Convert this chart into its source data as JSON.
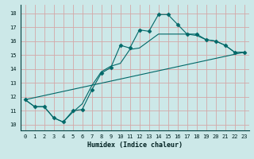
{
  "xlabel": "Humidex (Indice chaleur)",
  "xlim": [
    -0.5,
    23.5
  ],
  "ylim": [
    9.6,
    18.6
  ],
  "xticks": [
    0,
    1,
    2,
    3,
    4,
    5,
    6,
    7,
    8,
    9,
    10,
    11,
    12,
    13,
    14,
    15,
    16,
    17,
    18,
    19,
    20,
    21,
    22,
    23
  ],
  "yticks": [
    10,
    11,
    12,
    13,
    14,
    15,
    16,
    17,
    18
  ],
  "background_color": "#cce8e8",
  "grid_color": "#d4a8a8",
  "line_color": "#006868",
  "line1_x": [
    0,
    1,
    2,
    3,
    4,
    5,
    6,
    7,
    8,
    9,
    10,
    11,
    12,
    13,
    14,
    15,
    16,
    17,
    18,
    19,
    20,
    21,
    22,
    23
  ],
  "line1_y": [
    11.8,
    11.3,
    11.3,
    10.5,
    10.2,
    11.0,
    11.1,
    12.5,
    13.7,
    14.1,
    15.7,
    15.5,
    16.8,
    16.7,
    17.9,
    17.9,
    17.2,
    16.5,
    16.5,
    16.1,
    16.0,
    15.7,
    15.2,
    15.2
  ],
  "line2_x": [
    0,
    1,
    2,
    3,
    4,
    5,
    6,
    7,
    8,
    9,
    10,
    11,
    12,
    13,
    14,
    15,
    16,
    17,
    18,
    19,
    20,
    21,
    22,
    23
  ],
  "line2_y": [
    11.8,
    11.3,
    11.3,
    10.5,
    10.2,
    10.9,
    11.5,
    12.8,
    13.8,
    14.2,
    14.4,
    15.4,
    15.5,
    16.0,
    16.5,
    16.5,
    16.5,
    16.5,
    16.4,
    16.1,
    16.0,
    15.7,
    15.2,
    15.2
  ],
  "line3_x": [
    0,
    23
  ],
  "line3_y": [
    11.8,
    15.2
  ]
}
